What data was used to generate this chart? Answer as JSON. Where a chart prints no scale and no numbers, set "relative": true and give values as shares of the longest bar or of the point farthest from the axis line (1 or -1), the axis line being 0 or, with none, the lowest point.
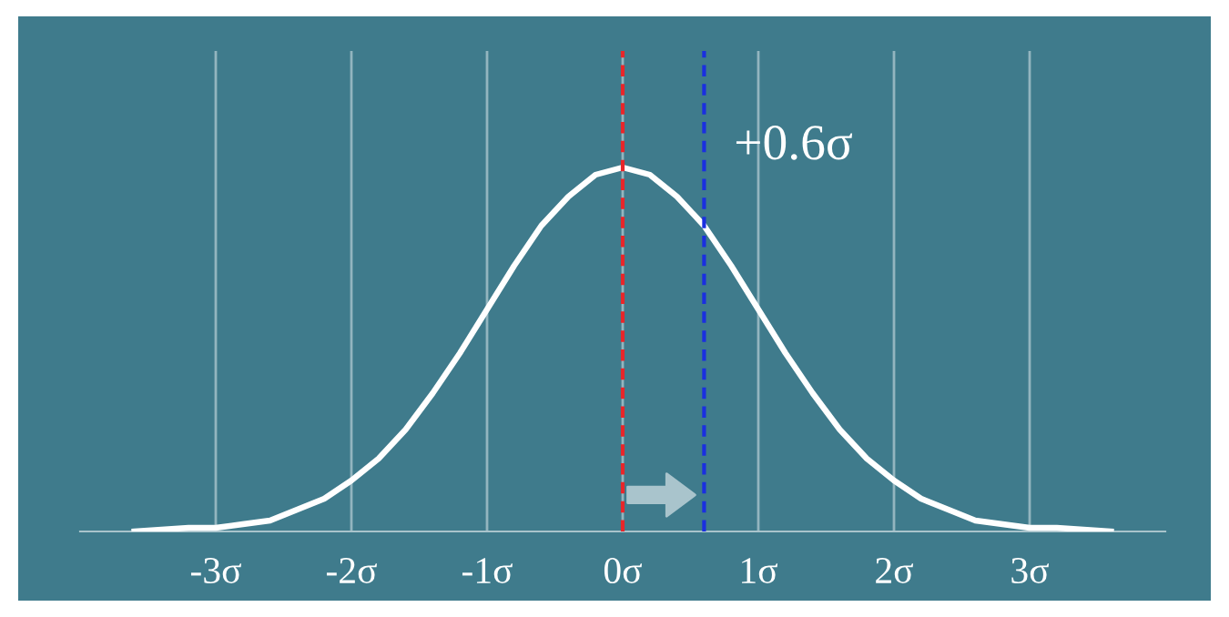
{
  "chart_data": {
    "type": "line",
    "relative": true,
    "x": [
      -3.6,
      -3.2,
      -3.0,
      -2.8,
      -2.6,
      -2.4,
      -2.2,
      -2.0,
      -1.8,
      -1.6,
      -1.4,
      -1.2,
      -1.0,
      -0.8,
      -0.6,
      -0.4,
      -0.2,
      0.0,
      0.2,
      0.4,
      0.6,
      0.8,
      1.0,
      1.2,
      1.4,
      1.6,
      1.8,
      2.0,
      2.2,
      2.4,
      2.6,
      2.8,
      3.0,
      3.2,
      3.6
    ],
    "series": [
      {
        "color": "#ffffff",
        "values": [
          0.0,
          0.01,
          0.01,
          0.02,
          0.03,
          0.06,
          0.09,
          0.14,
          0.2,
          0.28,
          0.38,
          0.49,
          0.61,
          0.73,
          0.84,
          0.92,
          0.98,
          1.0,
          0.98,
          0.92,
          0.84,
          0.73,
          0.61,
          0.49,
          0.38,
          0.28,
          0.2,
          0.14,
          0.09,
          0.06,
          0.03,
          0.02,
          0.01,
          0.01,
          0.0
        ]
      }
    ],
    "xlim": [
      -4,
      4
    ],
    "xticks": [
      {
        "value": -3,
        "label": "-3σ"
      },
      {
        "value": -2,
        "label": "-2σ"
      },
      {
        "value": -1,
        "label": "-1σ"
      },
      {
        "value": 0,
        "label": "0σ"
      },
      {
        "value": 1,
        "label": "1σ"
      },
      {
        "value": 2,
        "label": "2σ"
      },
      {
        "value": 3,
        "label": "3σ"
      }
    ],
    "grid": "x",
    "tick_labels": "x",
    "marker": "none",
    "line_style": "solid",
    "ref_lines": [
      {
        "axis": "x",
        "value": 0,
        "color": "#e8262a",
        "line_style": "dashed"
      },
      {
        "axis": "x",
        "value": 0.6,
        "label": "+0.6σ",
        "color": "#1a2fe0",
        "line_style": "dashed"
      }
    ]
  }
}
